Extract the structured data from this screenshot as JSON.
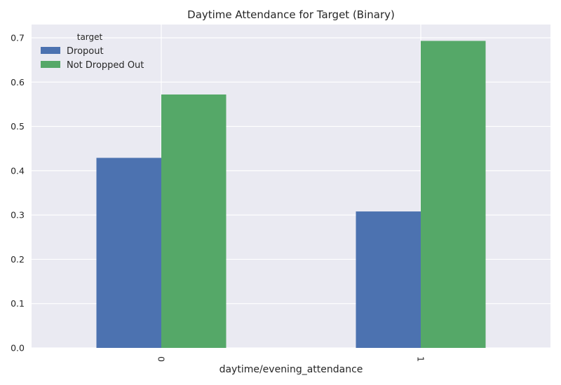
{
  "chart_data": {
    "type": "bar",
    "title": "Daytime Attendance for Target (Binary)",
    "xlabel": "daytime/evening_attendance",
    "ylabel": "",
    "categories": [
      "0",
      "1"
    ],
    "series": [
      {
        "name": "Dropout",
        "values": [
          0.429,
          0.308
        ],
        "color": "#4C72B0"
      },
      {
        "name": "Not Dropped Out",
        "values": [
          0.572,
          0.693
        ],
        "color": "#55A868"
      }
    ],
    "ylim": [
      0,
      0.73
    ],
    "yticks": [
      "0.0",
      "0.1",
      "0.2",
      "0.3",
      "0.4",
      "0.5",
      "0.6",
      "0.7"
    ],
    "legend": {
      "title": "target",
      "placement": "top-left"
    },
    "grid": true,
    "style": {
      "plot_background": "#EAEAF2",
      "grid_color": "#FFFFFF"
    }
  }
}
